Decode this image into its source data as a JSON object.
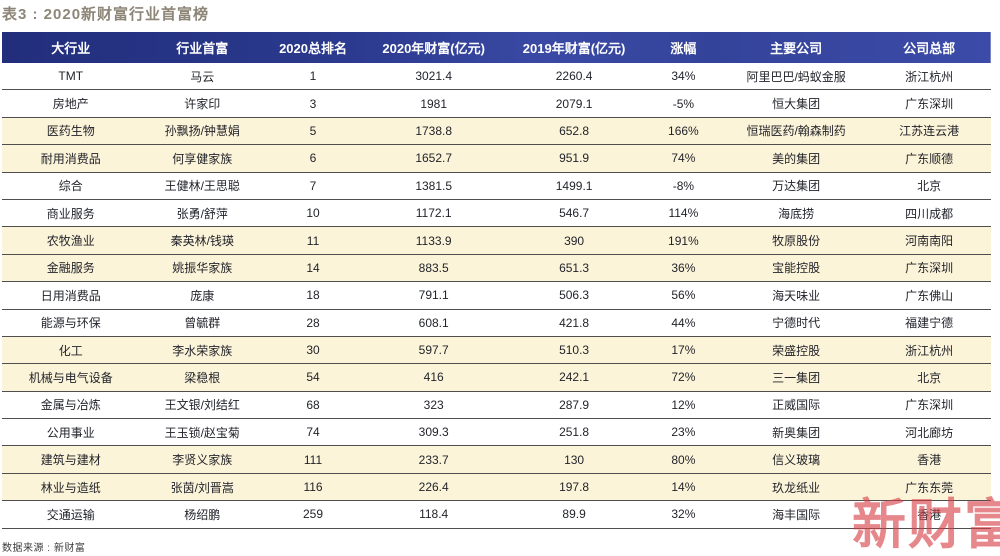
{
  "title": "表3 : 2020新财富行业首富榜",
  "source_note": "数据来源 : 新财富",
  "watermark": "新财富",
  "colors": {
    "header_bg": "#2b3a91",
    "row_cream": "#fcf4d9",
    "title_color": "#8d8577",
    "divider": "#4f4f4f",
    "watermark_color": "rgba(214,62,70,0.62)"
  },
  "chart_data": {
    "type": "table",
    "title": "2020新财富行业首富榜",
    "columns": [
      "大行业",
      "行业首富",
      "2020总排名",
      "2020年财富(亿元)",
      "2019年财富(亿元)",
      "涨幅",
      "主要公司",
      "公司总部"
    ],
    "field_order": [
      "industry",
      "person",
      "rank",
      "wealth_2020",
      "wealth_2019",
      "change",
      "company",
      "hq"
    ],
    "rows": [
      {
        "industry": "TMT",
        "person": "马云",
        "rank": "1",
        "wealth_2020": "3021.4",
        "wealth_2019": "2260.4",
        "change": "34%",
        "company": "阿里巴巴/蚂蚁金服",
        "hq": "浙江杭州",
        "shade": "white"
      },
      {
        "industry": "房地产",
        "person": "许家印",
        "rank": "3",
        "wealth_2020": "1981",
        "wealth_2019": "2079.1",
        "change": "-5%",
        "company": "恒大集团",
        "hq": "广东深圳",
        "shade": "white"
      },
      {
        "industry": "医药生物",
        "person": "孙飘扬/钟慧娟",
        "rank": "5",
        "wealth_2020": "1738.8",
        "wealth_2019": "652.8",
        "change": "166%",
        "company": "恒瑞医药/翰森制药",
        "hq": "江苏连云港",
        "shade": "cream"
      },
      {
        "industry": "耐用消费品",
        "person": "何享健家族",
        "rank": "6",
        "wealth_2020": "1652.7",
        "wealth_2019": "951.9",
        "change": "74%",
        "company": "美的集团",
        "hq": "广东顺德",
        "shade": "cream"
      },
      {
        "industry": "综合",
        "person": "王健林/王思聪",
        "rank": "7",
        "wealth_2020": "1381.5",
        "wealth_2019": "1499.1",
        "change": "-8%",
        "company": "万达集团",
        "hq": "北京",
        "shade": "white"
      },
      {
        "industry": "商业服务",
        "person": "张勇/舒萍",
        "rank": "10",
        "wealth_2020": "1172.1",
        "wealth_2019": "546.7",
        "change": "114%",
        "company": "海底捞",
        "hq": "四川成都",
        "shade": "white"
      },
      {
        "industry": "农牧渔业",
        "person": "秦英林/钱瑛",
        "rank": "11",
        "wealth_2020": "1133.9",
        "wealth_2019": "390",
        "change": "191%",
        "company": "牧原股份",
        "hq": "河南南阳",
        "shade": "cream"
      },
      {
        "industry": "金融服务",
        "person": "姚振华家族",
        "rank": "14",
        "wealth_2020": "883.5",
        "wealth_2019": "651.3",
        "change": "36%",
        "company": "宝能控股",
        "hq": "广东深圳",
        "shade": "cream"
      },
      {
        "industry": "日用消费品",
        "person": "庞康",
        "rank": "18",
        "wealth_2020": "791.1",
        "wealth_2019": "506.3",
        "change": "56%",
        "company": "海天味业",
        "hq": "广东佛山",
        "shade": "white"
      },
      {
        "industry": "能源与环保",
        "person": "曾毓群",
        "rank": "28",
        "wealth_2020": "608.1",
        "wealth_2019": "421.8",
        "change": "44%",
        "company": "宁德时代",
        "hq": "福建宁德",
        "shade": "white"
      },
      {
        "industry": "化工",
        "person": "李水荣家族",
        "rank": "30",
        "wealth_2020": "597.7",
        "wealth_2019": "510.3",
        "change": "17%",
        "company": "荣盛控股",
        "hq": "浙江杭州",
        "shade": "cream"
      },
      {
        "industry": "机械与电气设备",
        "person": "梁稳根",
        "rank": "54",
        "wealth_2020": "416",
        "wealth_2019": "242.1",
        "change": "72%",
        "company": "三一集团",
        "hq": "北京",
        "shade": "cream"
      },
      {
        "industry": "金属与冶炼",
        "person": "王文银/刘结红",
        "rank": "68",
        "wealth_2020": "323",
        "wealth_2019": "287.9",
        "change": "12%",
        "company": "正威国际",
        "hq": "广东深圳",
        "shade": "white"
      },
      {
        "industry": "公用事业",
        "person": "王玉锁/赵宝菊",
        "rank": "74",
        "wealth_2020": "309.3",
        "wealth_2019": "251.8",
        "change": "23%",
        "company": "新奥集团",
        "hq": "河北廊坊",
        "shade": "white"
      },
      {
        "industry": "建筑与建材",
        "person": "李贤义家族",
        "rank": "111",
        "wealth_2020": "233.7",
        "wealth_2019": "130",
        "change": "80%",
        "company": "信义玻璃",
        "hq": "香港",
        "shade": "cream"
      },
      {
        "industry": "林业与造纸",
        "person": "张茵/刘晋嵩",
        "rank": "116",
        "wealth_2020": "226.4",
        "wealth_2019": "197.8",
        "change": "14%",
        "company": "玖龙纸业",
        "hq": "广东东莞",
        "shade": "cream"
      },
      {
        "industry": "交通运输",
        "person": "杨绍鹏",
        "rank": "259",
        "wealth_2020": "118.4",
        "wealth_2019": "89.9",
        "change": "32%",
        "company": "海丰国际",
        "hq": "香港",
        "shade": "white"
      }
    ]
  }
}
